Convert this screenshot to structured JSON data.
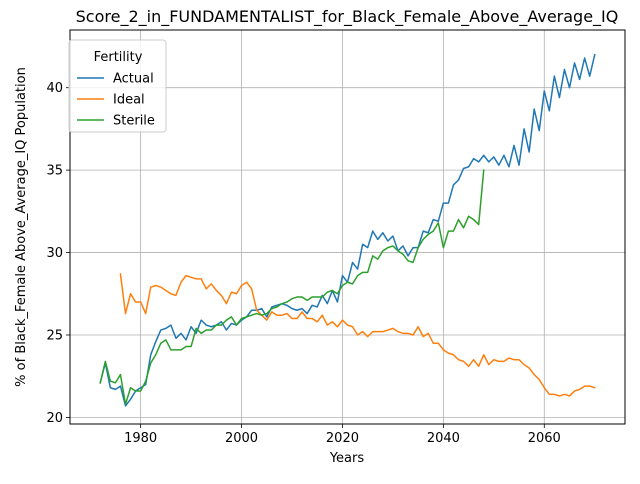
{
  "chart_data": {
    "type": "line",
    "title": "Score_2_in_FUNDAMENTALIST_for_Black_Female_Above_Average_IQ",
    "xlabel": "Years",
    "ylabel": "% of Black_Female Above_Average_IQ Population",
    "xlim": [
      1966,
      2076
    ],
    "ylim": [
      19.6,
      43.5
    ],
    "x_ticks": [
      1980,
      2000,
      2020,
      2040,
      2060
    ],
    "y_ticks": [
      20,
      25,
      30,
      35,
      40
    ],
    "grid": true,
    "legend": {
      "title": "Fertility",
      "position": "top-left"
    },
    "series": [
      {
        "name": "Actual",
        "color": "#1f77b4",
        "x": [
          1972,
          1973,
          1974,
          1975,
          1976,
          1977,
          1978,
          1979,
          1980,
          1981,
          1982,
          1983,
          1984,
          1985,
          1986,
          1987,
          1988,
          1989,
          1990,
          1991,
          1992,
          1993,
          1994,
          1995,
          1996,
          1997,
          1998,
          1999,
          2000,
          2001,
          2002,
          2003,
          2004,
          2005,
          2006,
          2007,
          2008,
          2009,
          2010,
          2011,
          2012,
          2013,
          2014,
          2015,
          2016,
          2017,
          2018,
          2019,
          2020,
          2021,
          2022,
          2023,
          2024,
          2025,
          2026,
          2027,
          2028,
          2029,
          2030,
          2031,
          2032,
          2033,
          2034,
          2035,
          2036,
          2037,
          2038,
          2039,
          2040,
          2041,
          2042,
          2043,
          2044,
          2045,
          2046,
          2047,
          2048,
          2049,
          2050,
          2051,
          2052,
          2053,
          2054,
          2055,
          2056,
          2057,
          2058,
          2059,
          2060,
          2061,
          2062,
          2063,
          2064,
          2065,
          2066,
          2067,
          2068,
          2069,
          2070
        ],
        "values": [
          22.1,
          23.3,
          21.8,
          21.7,
          21.9,
          20.7,
          21.1,
          21.6,
          21.8,
          22.0,
          23.8,
          24.6,
          25.3,
          25.4,
          25.6,
          24.8,
          25.1,
          24.7,
          25.5,
          25.1,
          25.9,
          25.6,
          25.5,
          25.6,
          25.8,
          25.3,
          25.7,
          25.6,
          25.9,
          26.1,
          26.5,
          26.5,
          26.6,
          26.1,
          26.7,
          26.8,
          26.9,
          26.8,
          26.6,
          26.5,
          26.6,
          26.3,
          26.8,
          26.7,
          27.4,
          26.9,
          27.7,
          27.0,
          28.6,
          28.2,
          29.4,
          29.0,
          30.5,
          30.3,
          31.3,
          30.8,
          31.2,
          30.7,
          31.0,
          30.1,
          30.4,
          29.8,
          30.3,
          30.3,
          31.3,
          31.2,
          32.0,
          31.9,
          33.0,
          33.0,
          34.1,
          34.4,
          35.1,
          35.2,
          35.7,
          35.5,
          35.9,
          35.5,
          35.8,
          35.3,
          35.9,
          35.2,
          36.5,
          35.3,
          37.5,
          36.1,
          38.7,
          37.4,
          39.8,
          38.6,
          40.7,
          39.4,
          41.1,
          40.0,
          41.5,
          40.5,
          41.8,
          40.7,
          42.0
        ]
      },
      {
        "name": "Ideal",
        "color": "#ff7f0e",
        "x": [
          1976,
          1977,
          1978,
          1979,
          1980,
          1981,
          1982,
          1983,
          1984,
          1985,
          1986,
          1987,
          1988,
          1989,
          1990,
          1991,
          1992,
          1993,
          1994,
          1995,
          1996,
          1997,
          1998,
          1999,
          2000,
          2001,
          2002,
          2003,
          2004,
          2005,
          2006,
          2007,
          2008,
          2009,
          2010,
          2011,
          2012,
          2013,
          2014,
          2015,
          2016,
          2017,
          2018,
          2019,
          2020,
          2021,
          2022,
          2023,
          2024,
          2025,
          2026,
          2027,
          2028,
          2029,
          2030,
          2031,
          2032,
          2033,
          2034,
          2035,
          2036,
          2037,
          2038,
          2039,
          2040,
          2041,
          2042,
          2043,
          2044,
          2045,
          2046,
          2047,
          2048,
          2049,
          2050,
          2051,
          2052,
          2053,
          2054,
          2055,
          2056,
          2057,
          2058,
          2059,
          2060,
          2061,
          2062,
          2063,
          2064,
          2065,
          2066,
          2067,
          2068,
          2069,
          2070
        ],
        "values": [
          28.7,
          26.3,
          27.5,
          27.0,
          27.0,
          26.3,
          27.9,
          28.0,
          27.9,
          27.7,
          27.5,
          27.4,
          28.2,
          28.6,
          28.5,
          28.4,
          28.4,
          27.8,
          28.1,
          27.7,
          27.4,
          26.9,
          27.6,
          27.5,
          28.0,
          28.2,
          27.8,
          26.5,
          26.2,
          25.9,
          26.4,
          26.2,
          26.2,
          26.3,
          26.0,
          26.0,
          26.4,
          26.0,
          26.0,
          25.8,
          26.2,
          25.6,
          25.8,
          25.5,
          25.9,
          25.6,
          25.5,
          25.0,
          25.2,
          24.9,
          25.2,
          25.2,
          25.2,
          25.3,
          25.4,
          25.2,
          25.1,
          25.1,
          25.0,
          25.5,
          24.9,
          25.1,
          24.5,
          24.5,
          24.1,
          23.9,
          23.8,
          23.5,
          23.4,
          23.1,
          23.5,
          23.1,
          23.8,
          23.2,
          23.5,
          23.4,
          23.4,
          23.6,
          23.5,
          23.5,
          23.2,
          23.0,
          22.6,
          22.3,
          21.8,
          21.4,
          21.4,
          21.3,
          21.4,
          21.3,
          21.6,
          21.7,
          21.9,
          21.9,
          21.8
        ]
      },
      {
        "name": "Sterile",
        "color": "#2ca02c",
        "x": [
          1972,
          1973,
          1974,
          1975,
          1976,
          1977,
          1978,
          1979,
          1980,
          1981,
          1982,
          1983,
          1984,
          1985,
          1986,
          1987,
          1988,
          1989,
          1990,
          1991,
          1992,
          1993,
          1994,
          1995,
          1996,
          1997,
          1998,
          1999,
          2000,
          2001,
          2002,
          2003,
          2004,
          2005,
          2006,
          2007,
          2008,
          2009,
          2010,
          2011,
          2012,
          2013,
          2014,
          2015,
          2016,
          2017,
          2018,
          2019,
          2020,
          2021,
          2022,
          2023,
          2024,
          2025,
          2026,
          2027,
          2028,
          2029,
          2030,
          2031,
          2032,
          2033,
          2034,
          2035,
          2036,
          2037,
          2038,
          2039,
          2040,
          2041,
          2042,
          2043,
          2044,
          2045,
          2046,
          2047,
          2048
        ],
        "values": [
          22.1,
          23.4,
          22.2,
          22.1,
          22.6,
          20.8,
          21.8,
          21.6,
          21.6,
          22.2,
          23.3,
          23.8,
          24.5,
          24.7,
          24.1,
          24.1,
          24.1,
          24.3,
          24.3,
          25.4,
          25.1,
          25.3,
          25.3,
          25.6,
          25.6,
          25.9,
          26.1,
          25.6,
          26.0,
          26.1,
          26.2,
          26.3,
          26.2,
          26.3,
          26.6,
          26.7,
          26.9,
          27.0,
          27.2,
          27.3,
          27.3,
          27.1,
          27.3,
          27.3,
          27.3,
          27.6,
          27.7,
          27.5,
          28.0,
          28.2,
          28.1,
          28.6,
          28.8,
          28.8,
          29.8,
          29.6,
          30.1,
          30.3,
          30.4,
          30.1,
          29.9,
          29.5,
          29.4,
          30.3,
          30.8,
          31.1,
          31.3,
          31.8,
          30.3,
          31.3,
          31.3,
          32.0,
          31.5,
          32.2,
          32.0,
          31.7,
          35.0
        ]
      }
    ]
  }
}
